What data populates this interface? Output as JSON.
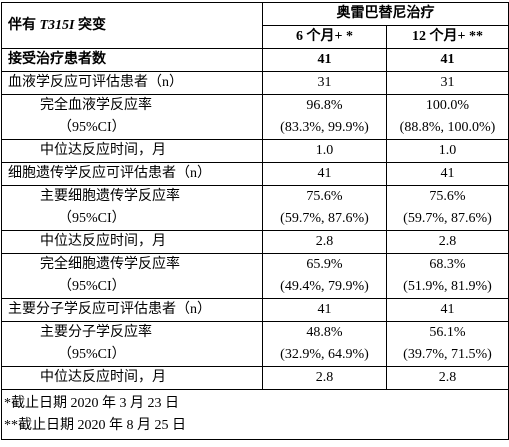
{
  "header": {
    "group_label_prefix": "伴有",
    "group_label_mutation": "T315I",
    "group_label_suffix": "突变",
    "treatment": "奥雷巴替尼治疗",
    "columns": [
      "6 个月+ *",
      "12 个月+ **"
    ]
  },
  "table": {
    "rows": [
      {
        "label": [
          "接受治疗患者数"
        ],
        "values": [
          [
            "41"
          ],
          [
            "41"
          ]
        ]
      },
      {
        "label": [
          "血液学反应可评估患者（n）"
        ],
        "values": [
          [
            "31"
          ],
          [
            "31"
          ]
        ]
      },
      {
        "label": [
          "完全血液学反应率",
          "（95%CI）"
        ],
        "values": [
          [
            "96.8%",
            "(83.3%, 99.9%)"
          ],
          [
            "100.0%",
            "(88.8%, 100.0%)"
          ]
        ]
      },
      {
        "label": [
          "中位达反应时间，月"
        ],
        "values": [
          [
            "1.0"
          ],
          [
            "1.0"
          ]
        ]
      },
      {
        "label": [
          "细胞遗传学反应可评估患者（n）"
        ],
        "values": [
          [
            "41"
          ],
          [
            "41"
          ]
        ]
      },
      {
        "label": [
          "主要细胞遗传学反应率",
          "（95%CI）"
        ],
        "values": [
          [
            "75.6%",
            "(59.7%, 87.6%)"
          ],
          [
            "75.6%",
            "(59.7%, 87.6%)"
          ]
        ]
      },
      {
        "label": [
          "中位达反应时间，月"
        ],
        "values": [
          [
            "2.8"
          ],
          [
            "2.8"
          ]
        ]
      },
      {
        "label": [
          "完全细胞遗传学反应率",
          "（95%CI）"
        ],
        "values": [
          [
            "65.9%",
            "(49.4%, 79.9%)"
          ],
          [
            "68.3%",
            "(51.9%, 81.9%)"
          ]
        ]
      },
      {
        "label": [
          "主要分子学反应可评估患者（n）"
        ],
        "values": [
          [
            "41"
          ],
          [
            "41"
          ]
        ]
      },
      {
        "label": [
          "主要分子学反应率",
          "（95%CI）"
        ],
        "values": [
          [
            "48.8%",
            "(32.9%, 64.9%)"
          ],
          [
            "56.1%",
            "(39.7%, 71.5%)"
          ]
        ]
      },
      {
        "label": [
          "中位达反应时间，月"
        ],
        "values": [
          [
            "2.8"
          ],
          [
            "2.8"
          ]
        ]
      }
    ]
  },
  "footnotes": [
    "*截止日期 2020 年 3 月 23 日",
    "**截止日期 2020 年 8 月 25 日"
  ]
}
